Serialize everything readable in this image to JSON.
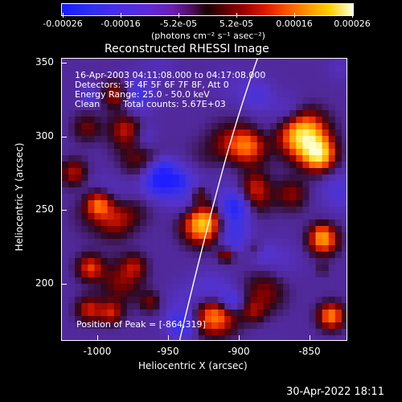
{
  "colorbar": {
    "ticks": [
      "-0.00026",
      "-0.00016",
      "-5.2e-05",
      "5.2e-05",
      "0.00016",
      "0.00026"
    ],
    "unit": "(photons cm⁻² s⁻¹ asec⁻²)"
  },
  "title": "Reconstructed RHESSI Image",
  "info": {
    "time": "16-Apr-2003 04:11:08.000 to 04:17:08.000",
    "detectors": "Detectors: 3F 4F 5F 6F 7F 8F, Att 0",
    "energy": "Energy Range: 25.0 - 50.0 keV",
    "method": "Clean",
    "counts": "Total counts: 5.67E+03"
  },
  "peak": "Position of Peak = [-864,319]",
  "xaxis": {
    "label": "Heliocentric X (arcsec)",
    "ticks": [
      "-1000",
      "-950",
      "-900",
      "-850"
    ]
  },
  "yaxis": {
    "label": "Heliocentric Y (arcsec)",
    "ticks": [
      "350",
      "300",
      "250",
      "200"
    ]
  },
  "timestamp": "30-Apr-2022 18:11"
}
